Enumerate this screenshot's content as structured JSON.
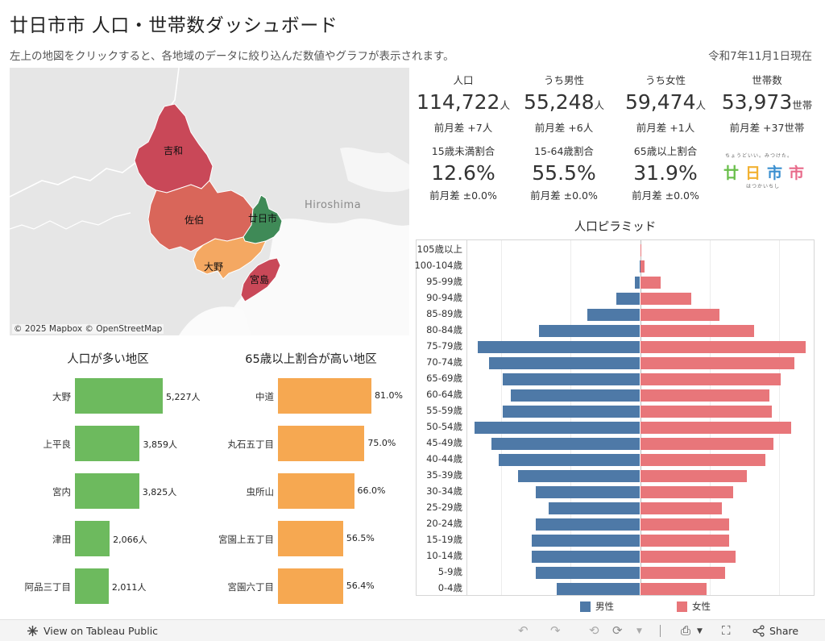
{
  "title": "廿日市市 人口・世帯数ダッシュボード",
  "subtitle": "左上の地図をクリックすると、各地域のデータに絞り込んだ数値やグラフが表示されます。",
  "as_of": "令和7年11月1日現在",
  "map": {
    "regions": [
      {
        "name": "吉和",
        "color": "#c94858"
      },
      {
        "name": "佐伯",
        "color": "#d9665a"
      },
      {
        "name": "廿日市",
        "color": "#3f8a57"
      },
      {
        "name": "大野",
        "color": "#f4a862"
      },
      {
        "name": "宮島",
        "color": "#c94858"
      }
    ],
    "city_label": "Hiroshima",
    "attribution": "© 2025 Mapbox  © OpenStreetMap"
  },
  "kpis": [
    {
      "label": "人口",
      "value": "114,722",
      "unit": "人",
      "diff": "前月差 +7人"
    },
    {
      "label": "うち男性",
      "value": "55,248",
      "unit": "人",
      "diff": "前月差 +6人"
    },
    {
      "label": "うち女性",
      "value": "59,474",
      "unit": "人",
      "diff": "前月差 +1人"
    },
    {
      "label": "世帯数",
      "value": "53,973",
      "unit": "世帯",
      "diff": "前月差 +37世帯"
    },
    {
      "label": "15歳未満割合",
      "value": "12.6%",
      "unit": "",
      "diff": "前月差 ±0.0%"
    },
    {
      "label": "15-64歳割合",
      "value": "55.5%",
      "unit": "",
      "diff": "前月差 ±0.0%"
    },
    {
      "label": "65歳以上割合",
      "value": "31.9%",
      "unit": "",
      "diff": "前月差 ±0.0%"
    }
  ],
  "logo": {
    "small_text": "ちょうどいい。みつけた。",
    "chars": "廿日市市",
    "bottom_text": "はつかいちし",
    "colors": [
      "#6abf4b",
      "#f2b233",
      "#3a8fd0",
      "#e86a8a"
    ]
  },
  "chart_data": [
    {
      "type": "bar",
      "title": "人口が多い地区",
      "categories": [
        "大野",
        "上平良",
        "宮内",
        "津田",
        "阿品三丁目"
      ],
      "values": [
        5227,
        3859,
        3825,
        2066,
        2011
      ],
      "value_labels": [
        "5,227人",
        "3,859人",
        "3,825人",
        "2,066人",
        "2,011人"
      ],
      "color": "#6dba5e"
    },
    {
      "type": "bar",
      "title": "65歳以上割合が高い地区",
      "categories": [
        "中道",
        "丸石五丁目",
        "虫所山",
        "宮園上五丁目",
        "宮園六丁目"
      ],
      "values": [
        81.0,
        75.0,
        66.0,
        56.5,
        56.4
      ],
      "value_labels": [
        "81.0%",
        "75.0%",
        "66.0%",
        "56.5%",
        "56.4%"
      ],
      "color": "#f6a851"
    },
    {
      "type": "bar",
      "title": "人口ピラミッド",
      "categories": [
        "105歳以上",
        "100-104歳",
        "95-99歳",
        "90-94歳",
        "85-89歳",
        "80-84歳",
        "75-79歳",
        "70-74歳",
        "65-69歳",
        "60-64歳",
        "55-59歳",
        "50-54歳",
        "45-49歳",
        "40-44歳",
        "35-39歳",
        "30-34歳",
        "25-29歳",
        "20-24歳",
        "15-19歳",
        "10-14歳",
        "5-9歳",
        "0-4歳"
      ],
      "series": [
        {
          "name": "男性",
          "color": "#4e79a7",
          "values": [
            0,
            5,
            40,
            170,
            380,
            730,
            1170,
            1090,
            990,
            930,
            990,
            1190,
            1070,
            1020,
            880,
            750,
            660,
            750,
            780,
            780,
            750,
            600
          ]
        },
        {
          "name": "女性",
          "color": "#e8767a",
          "values": [
            3,
            30,
            150,
            370,
            570,
            820,
            1190,
            1110,
            1010,
            930,
            950,
            1090,
            960,
            900,
            770,
            670,
            590,
            640,
            640,
            690,
            610,
            480
          ]
        }
      ],
      "xlim": [
        -1250,
        1250
      ]
    }
  ],
  "footer": {
    "view_label": "View on Tableau Public",
    "share_label": "Share"
  }
}
